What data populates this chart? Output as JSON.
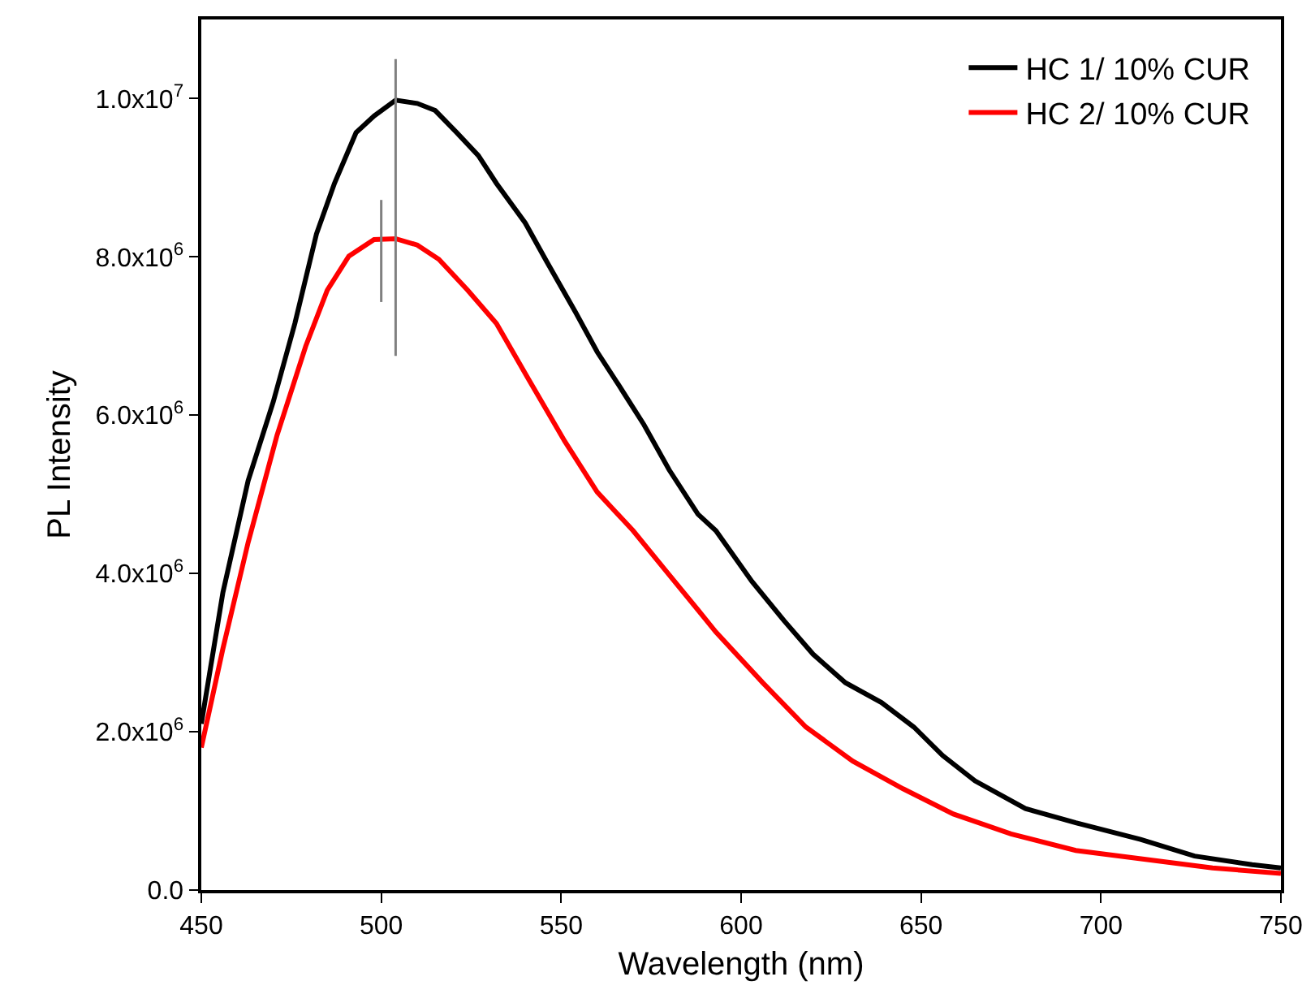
{
  "chart_data": {
    "type": "line",
    "xlabel": "Wavelength (nm)",
    "ylabel": "PL Intensity",
    "xlim": [
      450,
      750
    ],
    "xticks": [
      450,
      500,
      550,
      600,
      650,
      700,
      750
    ],
    "ylim": [
      0,
      11000000
    ],
    "yticks": [
      {
        "value": 0,
        "label": "0.0"
      },
      {
        "value": 2000000,
        "label": "2.0x10$^{6}$"
      },
      {
        "value": 4000000,
        "label": "4.0x10$^{6}$"
      },
      {
        "value": 6000000,
        "label": "6.0x10$^{6}$"
      },
      {
        "value": 8000000,
        "label": "8.0x10$^{6}$"
      },
      {
        "value": 10000000,
        "label": "1.0x10$^{7}$"
      }
    ],
    "grid": false,
    "legend": "top right",
    "series": [
      {
        "name": "HC 1/ 10% CUR",
        "color": "#000000",
        "x": [
          450,
          456,
          463,
          470,
          476,
          482,
          487,
          493,
          498,
          504,
          510,
          515,
          521,
          527,
          532,
          540,
          546,
          554,
          560,
          566,
          573,
          580,
          588,
          593,
          603,
          612,
          620,
          629,
          639,
          648,
          656,
          665,
          679,
          693,
          711,
          726,
          742,
          750
        ],
        "values": [
          2100000,
          3760000,
          5170000,
          6170000,
          7160000,
          8290000,
          8930000,
          9570000,
          9780000,
          9980000,
          9940000,
          9850000,
          9570000,
          9280000,
          8930000,
          8430000,
          7940000,
          7300000,
          6800000,
          6380000,
          5880000,
          5310000,
          4750000,
          4540000,
          3900000,
          3400000,
          2980000,
          2620000,
          2370000,
          2060000,
          1700000,
          1380000,
          1030000,
          850000,
          640000,
          430000,
          320000,
          280000
        ]
      },
      {
        "name": "HC 2/ 10% CUR",
        "color": "#ff0000",
        "x": [
          450,
          456,
          463,
          471,
          479,
          485,
          491,
          498,
          504,
          510,
          516,
          524,
          532,
          541,
          551,
          560,
          570,
          579,
          588,
          593,
          606,
          618,
          631,
          645,
          659,
          675,
          693,
          712,
          731,
          750
        ],
        "values": [
          1800000,
          3050000,
          4390000,
          5740000,
          6870000,
          7580000,
          8010000,
          8220000,
          8230000,
          8150000,
          7970000,
          7580000,
          7160000,
          6450000,
          5670000,
          5030000,
          4540000,
          4040000,
          3540000,
          3260000,
          2620000,
          2060000,
          1630000,
          1280000,
          960000,
          710000,
          500000,
          390000,
          280000,
          210000
        ]
      },
      {
        "color": "#808080",
        "x": [
          504,
          504
        ],
        "values": [
          6750000,
          10500000
        ]
      },
      {
        "color": "#808080",
        "x": [
          500,
          500
        ],
        "values": [
          7430000,
          8720000
        ]
      }
    ]
  }
}
